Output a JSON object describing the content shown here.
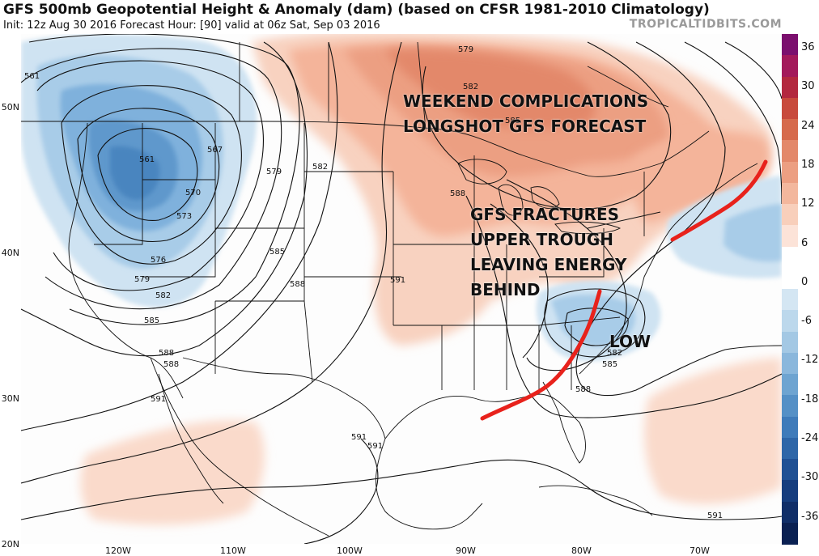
{
  "header": {
    "title": "GFS 500mb Geopotential Height & Anomaly (dam) (based on CFSR 1981-2010 Climatology)",
    "subtitle": "Init: 12z Aug 30 2016   Forecast Hour: [90]   valid at 06z Sat, Sep 03 2016",
    "brand": "TROPICALTIDBITS.COM"
  },
  "annotations": {
    "weekend_line1": "WEEKEND COMPLICATIONS",
    "weekend_line2": "LONGSHOT GFS FORECAST",
    "fracture_line1": "GFS FRACTURES",
    "fracture_line2": "UPPER TROUGH",
    "fracture_line3": "LEAVING ENERGY",
    "fracture_line4": "BEHIND",
    "low": "LOW"
  },
  "contour_labels": [
    "561",
    "561",
    "567",
    "570",
    "573",
    "576",
    "579",
    "582",
    "585",
    "588",
    "579",
    "582",
    "579",
    "582",
    "585",
    "588",
    "585",
    "588",
    "591",
    "591",
    "588",
    "591",
    "585",
    "582",
    "591",
    "591",
    "588"
  ],
  "lat_labels": [
    "50N",
    "40N",
    "30N",
    "20N"
  ],
  "lon_labels": [
    "120W",
    "110W",
    "100W",
    "90W",
    "80W",
    "70W"
  ],
  "colorbar": {
    "ticks": [
      "36",
      "30",
      "24",
      "18",
      "12",
      "6",
      "0",
      "-6",
      "-12",
      "-18",
      "-24",
      "-30",
      "-36"
    ],
    "colors": [
      "#7b0f6e",
      "#a3195b",
      "#b3283f",
      "#c84a3c",
      "#d66a4c",
      "#e3886a",
      "#ec9f82",
      "#f3b79d",
      "#f8cfbb",
      "#fce3d8",
      "#ffffff",
      "#ffffff",
      "#d4e6f3",
      "#bcd8ec",
      "#a3c8e4",
      "#8ab7dc",
      "#6ea4d1",
      "#5590c6",
      "#3f7bba",
      "#2e66a8",
      "#1f5094",
      "#163d7e",
      "#102e68",
      "#0a2052"
    ]
  },
  "colors": {
    "positive_anomaly": "#f4b49a",
    "negative_anomaly": "#8fbde0",
    "drawn_line": "#e8221c"
  }
}
